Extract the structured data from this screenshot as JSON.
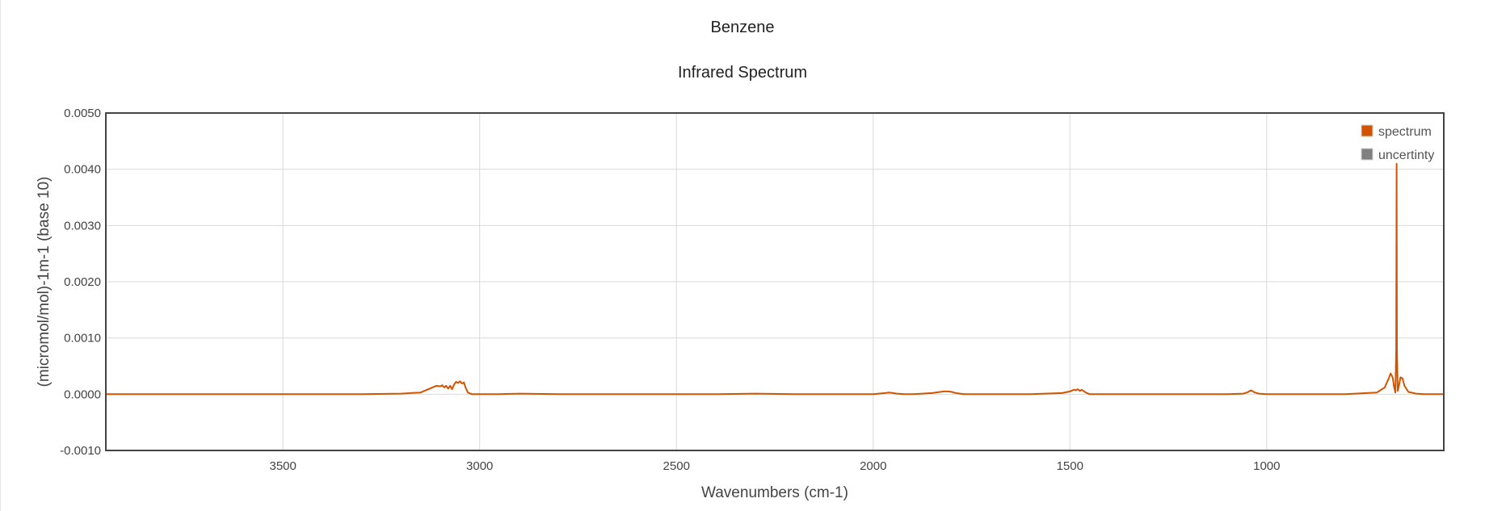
{
  "chart_data": {
    "type": "line",
    "title": "Benzene",
    "subtitle": "Infrared Spectrum",
    "xlabel": "Wavenumbers (cm-1)",
    "ylabel": "(micromol/mol)-1m-1 (base 10)",
    "xlim": [
      3950,
      550
    ],
    "ylim": [
      -0.001,
      0.005
    ],
    "x_reversed": true,
    "x_ticks": [
      3500,
      3000,
      2500,
      2000,
      1500,
      1000
    ],
    "y_ticks": [
      -0.001,
      0.0,
      0.001,
      0.002,
      0.003,
      0.004,
      0.005
    ],
    "y_tick_labels": [
      "-0.0010",
      "0.0000",
      "0.0010",
      "0.0020",
      "0.0030",
      "0.0040",
      "0.0050"
    ],
    "grid": true,
    "legend_position": "top-right",
    "series": [
      {
        "name": "spectrum",
        "color": "#d35400",
        "x": [
          3950,
          3900,
          3800,
          3700,
          3600,
          3500,
          3400,
          3300,
          3200,
          3150,
          3110,
          3100,
          3095,
          3090,
          3085,
          3080,
          3075,
          3070,
          3065,
          3060,
          3055,
          3050,
          3045,
          3040,
          3036,
          3030,
          3020,
          3000,
          2950,
          2900,
          2800,
          2700,
          2600,
          2500,
          2400,
          2300,
          2200,
          2100,
          2000,
          1970,
          1960,
          1950,
          1940,
          1920,
          1900,
          1850,
          1830,
          1820,
          1810,
          1800,
          1790,
          1770,
          1700,
          1600,
          1520,
          1500,
          1490,
          1485,
          1480,
          1475,
          1470,
          1460,
          1450,
          1400,
          1300,
          1200,
          1100,
          1060,
          1050,
          1040,
          1035,
          1030,
          1020,
          1000,
          900,
          800,
          720,
          700,
          690,
          685,
          680,
          676,
          673,
          671,
          670,
          669,
          667,
          664,
          660,
          655,
          650,
          640,
          620,
          600,
          550
        ],
        "y": [
          0.0,
          0.0,
          0.0,
          0.0,
          0.0,
          0.0,
          0.0,
          0.0,
          1e-05,
          3e-05,
          0.00015,
          0.00014,
          0.00016,
          0.00012,
          0.00015,
          0.0001,
          0.00015,
          9e-05,
          0.00017,
          0.00022,
          0.0002,
          0.00023,
          0.00019,
          0.00021,
          0.00012,
          3e-05,
          0.0,
          0.0,
          0.0,
          1e-05,
          0.0,
          0.0,
          0.0,
          0.0,
          0.0,
          1e-05,
          0.0,
          0.0,
          0.0,
          2e-05,
          3e-05,
          2e-05,
          1e-05,
          0.0,
          0.0,
          2e-05,
          4e-05,
          5e-05,
          5e-05,
          4e-05,
          2e-05,
          0.0,
          0.0,
          0.0,
          2e-05,
          5e-05,
          8e-05,
          7e-05,
          9e-05,
          6e-05,
          8e-05,
          3e-05,
          0.0,
          0.0,
          0.0,
          0.0,
          0.0,
          1e-05,
          3e-05,
          7e-05,
          5e-05,
          3e-05,
          1e-05,
          0.0,
          0.0,
          0.0,
          3e-05,
          0.00012,
          0.00028,
          0.00037,
          0.0003,
          0.00012,
          3e-05,
          0.0008,
          0.0041,
          0.0008,
          6e-05,
          0.00015,
          0.0003,
          0.00028,
          0.00015,
          4e-05,
          1e-05,
          0.0,
          0.0
        ]
      },
      {
        "name": "uncertinty",
        "color": "#808080",
        "x": [],
        "y": []
      }
    ]
  }
}
